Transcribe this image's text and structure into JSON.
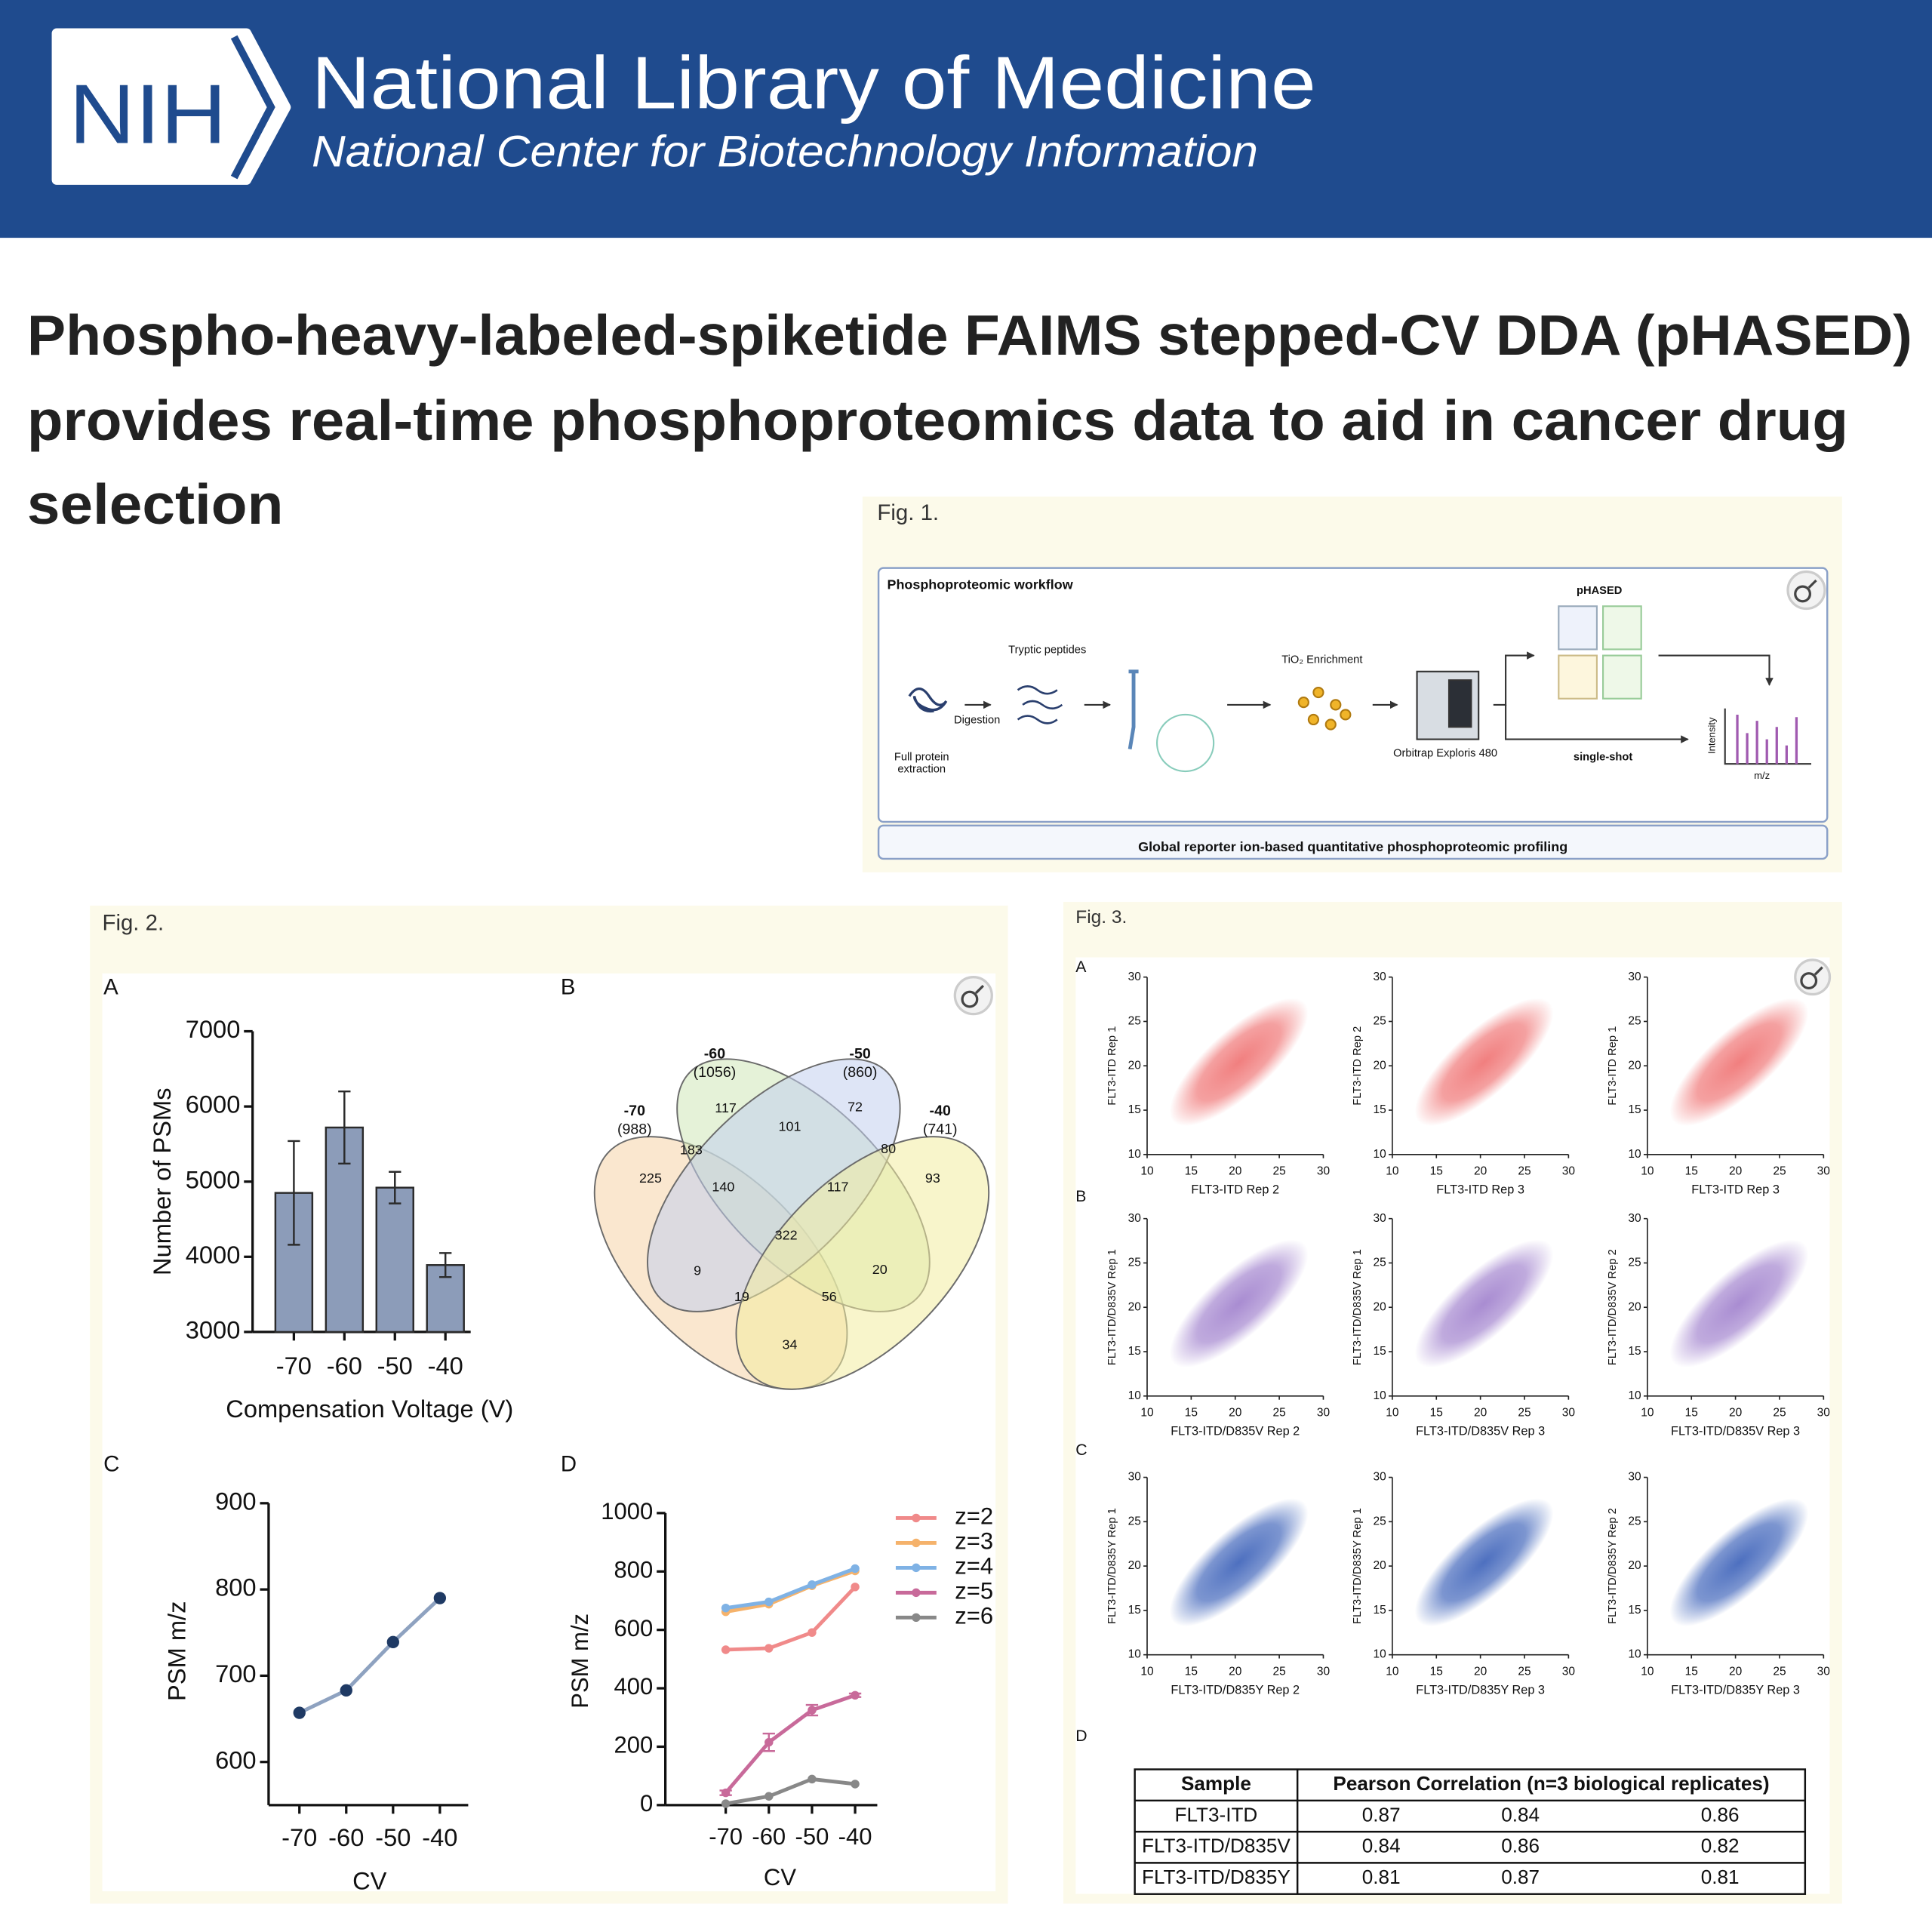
{
  "header": {
    "logo": "NIH",
    "title": "National Library of Medicine",
    "subtitle": "National Center for Biotechnology Information"
  },
  "article": {
    "title_lines": [
      "Phospho-heavy-labeled-spiketide FAIMS stepped-CV DDA (pHASED)",
      "provides real-time phosphoproteomics data to aid in cancer drug",
      "selection"
    ]
  },
  "fig1": {
    "label": "Fig. 1.",
    "workflow": {
      "title": "Phosphoproteomic workflow",
      "tryptic": "Tryptic peptides",
      "digestion": "Digestion",
      "extraction": [
        "Full protein",
        "extraction"
      ],
      "enrichment": "TiO₂ Enrichment",
      "instrument": "Orbitrap Exploris 480",
      "phased": "pHASED",
      "single_shot": "single-shot",
      "intensity": "Intensity",
      "mz": "m/z",
      "footer": "Global reporter ion-based quantitative phosphoproteomic profiling"
    }
  },
  "fig2": {
    "label": "Fig. 2.",
    "chart_data": [
      {
        "type": "bar",
        "panel": "A",
        "categories": [
          "-70",
          "-60",
          "-50",
          "-40"
        ],
        "values": [
          4850,
          5720,
          4920,
          3890
        ],
        "errors": [
          690,
          480,
          210,
          160
        ],
        "color": "#8c9cb9",
        "ylim": [
          3000,
          7000
        ],
        "yticks": [
          3000,
          4000,
          5000,
          6000,
          7000
        ],
        "ylabel": "Number of PSMs",
        "xlabel": "Compensation Voltage (V)"
      },
      {
        "type": "venn",
        "panel": "B",
        "sets": [
          {
            "name": "-70",
            "count": "(988)",
            "color": "#f6d3a8"
          },
          {
            "name": "-60",
            "count": "(1056)",
            "color": "#cfe8b8"
          },
          {
            "name": "-50",
            "count": "(860)",
            "color": "#c3d0ee"
          },
          {
            "name": "-40",
            "count": "(741)",
            "color": "#f3eca0"
          }
        ],
        "regions": [
          225,
          183,
          117,
          101,
          72,
          80,
          93,
          140,
          117,
          322,
          9,
          20,
          19,
          56,
          34
        ]
      },
      {
        "type": "line",
        "panel": "C",
        "categories": [
          "-70",
          "-60",
          "-50",
          "-40"
        ],
        "values": [
          657,
          683,
          739,
          790
        ],
        "color": "#8ea2c0",
        "marker_color": "#1f3a64",
        "ylim": [
          550,
          900
        ],
        "yticks": [
          600,
          700,
          800,
          900
        ],
        "ylabel": "PSM m/z",
        "xlabel": "CV"
      },
      {
        "type": "multiline",
        "panel": "D",
        "categories": [
          "-70",
          "-60",
          "-50",
          "-40"
        ],
        "series": [
          {
            "name": "z=2",
            "color": "#f08a8a",
            "values": [
              532,
              537,
              591,
              747
            ]
          },
          {
            "name": "z=3",
            "color": "#f5b26b",
            "values": [
              662,
              688,
              751,
              802
            ]
          },
          {
            "name": "z=4",
            "color": "#7fb2e5",
            "values": [
              675,
              696,
              755,
              810
            ]
          },
          {
            "name": "z=5",
            "color": "#c86a9a",
            "values": [
              42,
              215,
              325,
              376
            ],
            "errors": [
              8,
              30,
              18,
              6
            ]
          },
          {
            "name": "z=6",
            "color": "#888888",
            "values": [
              5,
              30,
              89,
              72
            ]
          }
        ],
        "ylim": [
          0,
          1000
        ],
        "yticks": [
          0,
          200,
          400,
          600,
          800,
          1000
        ],
        "ylabel": "PSM m/z",
        "xlabel": "CV"
      }
    ]
  },
  "fig3": {
    "label": "Fig. 3.",
    "axes": {
      "type": "scatter",
      "xlim": [
        10,
        30
      ],
      "ylim": [
        10,
        30
      ],
      "xticks": [
        10,
        15,
        20,
        25,
        30
      ],
      "yticks": [
        10,
        15,
        20,
        25,
        30
      ]
    },
    "rows": [
      {
        "panel": "A",
        "color": "#f07878",
        "plots": [
          {
            "xlabel": "FLT3-ITD Rep 2",
            "ylabel": "FLT3-ITD Rep 1"
          },
          {
            "xlabel": "FLT3-ITD Rep 3",
            "ylabel": "FLT3-ITD Rep 2"
          },
          {
            "xlabel": "FLT3-ITD Rep 3",
            "ylabel": "FLT3-ITD Rep 1"
          }
        ]
      },
      {
        "panel": "B",
        "color": "#a486cf",
        "plots": [
          {
            "xlabel": "FLT3-ITD/D835V Rep 2",
            "ylabel": "FLT3-ITD/D835V Rep 1"
          },
          {
            "xlabel": "FLT3-ITD/D835V Rep 3",
            "ylabel": "FLT3-ITD/D835V Rep 1"
          },
          {
            "xlabel": "FLT3-ITD/D835V Rep 3",
            "ylabel": "FLT3-ITD/D835V Rep 2"
          }
        ]
      },
      {
        "panel": "C",
        "color": "#4468bc",
        "plots": [
          {
            "xlabel": "FLT3-ITD/D835Y Rep 2",
            "ylabel": "FLT3-ITD/D835Y Rep 1"
          },
          {
            "xlabel": "FLT3-ITD/D835Y Rep 3",
            "ylabel": "FLT3-ITD/D835Y Rep 1"
          },
          {
            "xlabel": "FLT3-ITD/D835Y Rep 3",
            "ylabel": "FLT3-ITD/D835Y Rep 2"
          }
        ]
      }
    ],
    "table": {
      "panel": "D",
      "header": [
        "Sample",
        "Pearson Correlation (n=3 biological replicates)"
      ],
      "rows": [
        [
          "FLT3-ITD",
          0.87,
          0.84,
          0.86
        ],
        [
          "FLT3-ITD/D835V",
          0.84,
          0.86,
          0.82
        ],
        [
          "FLT3-ITD/D835Y",
          0.81,
          0.87,
          0.81
        ]
      ]
    }
  }
}
